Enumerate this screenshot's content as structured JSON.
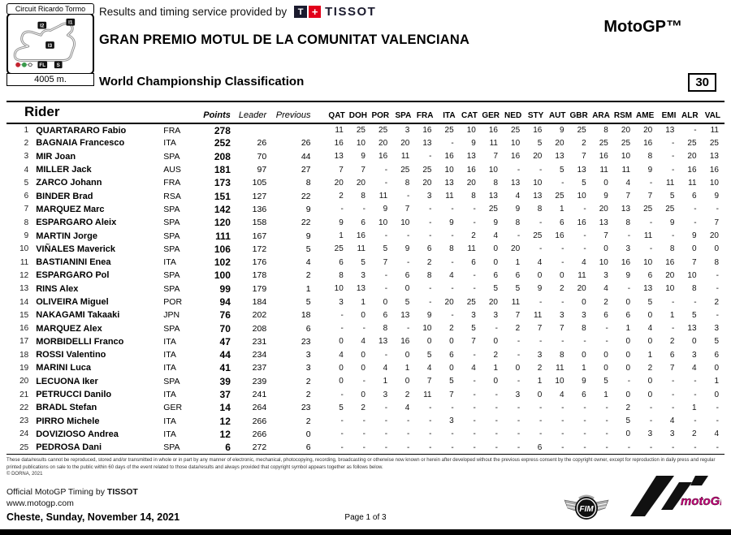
{
  "header": {
    "circuit_name": "Circuit Ricardo Tormo",
    "circuit_length": "4005 m.",
    "sector_labels": {
      "i2": "I2",
      "i1": "I1",
      "i3": "I3",
      "fl": "FL",
      "s": "S"
    },
    "service_text": "Results and timing service provided by",
    "tissot_t": "T",
    "tissot_plus": "+",
    "tissot_wordmark": "TISSOT",
    "event_title": "GRAN PREMIO MOTUL DE LA COMUNITAT VALENCIANA",
    "report_title": "World Championship Classification",
    "category": "MotoGP™",
    "doc_number": "30",
    "colors": {
      "tissot_red": "#e2001a",
      "tissot_navy": "#1b1b2e",
      "motogp_magenta": "#c9007a"
    }
  },
  "table": {
    "rider_col": "Rider",
    "points_col": "Points",
    "leader_col": "Leader",
    "previous_col": "Previous",
    "races": [
      "QAT",
      "DOH",
      "POR",
      "SPA",
      "FRA",
      "ITA",
      "CAT",
      "GER",
      "NED",
      "STY",
      "AUT",
      "GBR",
      "ARA",
      "RSM",
      "AME",
      "EMI",
      "ALR",
      "VAL"
    ],
    "rows": [
      {
        "pos": "1",
        "rider": "QUARTARARO Fabio",
        "nation": "FRA",
        "points": "278",
        "leader": "",
        "previous": "",
        "scores": [
          "11",
          "25",
          "25",
          "3",
          "16",
          "25",
          "10",
          "16",
          "25",
          "16",
          "9",
          "25",
          "8",
          "20",
          "20",
          "13",
          "-",
          "11"
        ]
      },
      {
        "pos": "2",
        "rider": "BAGNAIA Francesco",
        "nation": "ITA",
        "points": "252",
        "leader": "26",
        "previous": "26",
        "scores": [
          "16",
          "10",
          "20",
          "20",
          "13",
          "-",
          "9",
          "11",
          "10",
          "5",
          "20",
          "2",
          "25",
          "25",
          "16",
          "-",
          "25",
          "25"
        ]
      },
      {
        "pos": "3",
        "rider": "MIR Joan",
        "nation": "SPA",
        "points": "208",
        "leader": "70",
        "previous": "44",
        "scores": [
          "13",
          "9",
          "16",
          "11",
          "-",
          "16",
          "13",
          "7",
          "16",
          "20",
          "13",
          "7",
          "16",
          "10",
          "8",
          "-",
          "20",
          "13"
        ]
      },
      {
        "pos": "4",
        "rider": "MILLER Jack",
        "nation": "AUS",
        "points": "181",
        "leader": "97",
        "previous": "27",
        "scores": [
          "7",
          "7",
          "-",
          "25",
          "25",
          "10",
          "16",
          "10",
          "-",
          "-",
          "5",
          "13",
          "11",
          "11",
          "9",
          "-",
          "16",
          "16"
        ]
      },
      {
        "pos": "5",
        "rider": "ZARCO Johann",
        "nation": "FRA",
        "points": "173",
        "leader": "105",
        "previous": "8",
        "scores": [
          "20",
          "20",
          "-",
          "8",
          "20",
          "13",
          "20",
          "8",
          "13",
          "10",
          "-",
          "5",
          "0",
          "4",
          "-",
          "11",
          "11",
          "10"
        ]
      },
      {
        "pos": "6",
        "rider": "BINDER Brad",
        "nation": "RSA",
        "points": "151",
        "leader": "127",
        "previous": "22",
        "scores": [
          "2",
          "8",
          "11",
          "-",
          "3",
          "11",
          "8",
          "13",
          "4",
          "13",
          "25",
          "10",
          "9",
          "7",
          "7",
          "5",
          "6",
          "9"
        ]
      },
      {
        "pos": "7",
        "rider": "MARQUEZ Marc",
        "nation": "SPA",
        "points": "142",
        "leader": "136",
        "previous": "9",
        "scores": [
          "-",
          "-",
          "9",
          "7",
          "-",
          "-",
          "-",
          "25",
          "9",
          "8",
          "1",
          "-",
          "20",
          "13",
          "25",
          "25",
          "-",
          "-"
        ]
      },
      {
        "pos": "8",
        "rider": "ESPARGARO Aleix",
        "nation": "SPA",
        "points": "120",
        "leader": "158",
        "previous": "22",
        "scores": [
          "9",
          "6",
          "10",
          "10",
          "-",
          "9",
          "-",
          "9",
          "8",
          "-",
          "6",
          "16",
          "13",
          "8",
          "-",
          "9",
          "-",
          "7"
        ]
      },
      {
        "pos": "9",
        "rider": "MARTIN Jorge",
        "nation": "SPA",
        "points": "111",
        "leader": "167",
        "previous": "9",
        "scores": [
          "1",
          "16",
          "-",
          "-",
          "-",
          "-",
          "2",
          "4",
          "-",
          "25",
          "16",
          "-",
          "7",
          "-",
          "11",
          "-",
          "9",
          "20"
        ]
      },
      {
        "pos": "10",
        "rider": "VIÑALES Maverick",
        "nation": "SPA",
        "points": "106",
        "leader": "172",
        "previous": "5",
        "scores": [
          "25",
          "11",
          "5",
          "9",
          "6",
          "8",
          "11",
          "0",
          "20",
          "-",
          "-",
          "-",
          "0",
          "3",
          "-",
          "8",
          "0",
          "0"
        ]
      },
      {
        "pos": "11",
        "rider": "BASTIANINI Enea",
        "nation": "ITA",
        "points": "102",
        "leader": "176",
        "previous": "4",
        "scores": [
          "6",
          "5",
          "7",
          "-",
          "2",
          "-",
          "6",
          "0",
          "1",
          "4",
          "-",
          "4",
          "10",
          "16",
          "10",
          "16",
          "7",
          "8"
        ]
      },
      {
        "pos": "12",
        "rider": "ESPARGARO Pol",
        "nation": "SPA",
        "points": "100",
        "leader": "178",
        "previous": "2",
        "scores": [
          "8",
          "3",
          "-",
          "6",
          "8",
          "4",
          "-",
          "6",
          "6",
          "0",
          "0",
          "11",
          "3",
          "9",
          "6",
          "20",
          "10",
          "-"
        ]
      },
      {
        "pos": "13",
        "rider": "RINS Alex",
        "nation": "SPA",
        "points": "99",
        "leader": "179",
        "previous": "1",
        "scores": [
          "10",
          "13",
          "-",
          "0",
          "-",
          "-",
          "-",
          "5",
          "5",
          "9",
          "2",
          "20",
          "4",
          "-",
          "13",
          "10",
          "8",
          "-"
        ]
      },
      {
        "pos": "14",
        "rider": "OLIVEIRA Miguel",
        "nation": "POR",
        "points": "94",
        "leader": "184",
        "previous": "5",
        "scores": [
          "3",
          "1",
          "0",
          "5",
          "-",
          "20",
          "25",
          "20",
          "11",
          "-",
          "-",
          "0",
          "2",
          "0",
          "5",
          "-",
          "-",
          "2"
        ]
      },
      {
        "pos": "15",
        "rider": "NAKAGAMI Takaaki",
        "nation": "JPN",
        "points": "76",
        "leader": "202",
        "previous": "18",
        "scores": [
          "-",
          "0",
          "6",
          "13",
          "9",
          "-",
          "3",
          "3",
          "7",
          "11",
          "3",
          "3",
          "6",
          "6",
          "0",
          "1",
          "5",
          "-"
        ]
      },
      {
        "pos": "16",
        "rider": "MARQUEZ Alex",
        "nation": "SPA",
        "points": "70",
        "leader": "208",
        "previous": "6",
        "scores": [
          "-",
          "-",
          "8",
          "-",
          "10",
          "2",
          "5",
          "-",
          "2",
          "7",
          "7",
          "8",
          "-",
          "1",
          "4",
          "-",
          "13",
          "3"
        ]
      },
      {
        "pos": "17",
        "rider": "MORBIDELLI Franco",
        "nation": "ITA",
        "points": "47",
        "leader": "231",
        "previous": "23",
        "scores": [
          "0",
          "4",
          "13",
          "16",
          "0",
          "0",
          "7",
          "0",
          "-",
          "-",
          "-",
          "-",
          "-",
          "0",
          "0",
          "2",
          "0",
          "5"
        ]
      },
      {
        "pos": "18",
        "rider": "ROSSI Valentino",
        "nation": "ITA",
        "points": "44",
        "leader": "234",
        "previous": "3",
        "scores": [
          "4",
          "0",
          "-",
          "0",
          "5",
          "6",
          "-",
          "2",
          "-",
          "3",
          "8",
          "0",
          "0",
          "0",
          "1",
          "6",
          "3",
          "6"
        ]
      },
      {
        "pos": "19",
        "rider": "MARINI Luca",
        "nation": "ITA",
        "points": "41",
        "leader": "237",
        "previous": "3",
        "scores": [
          "0",
          "0",
          "4",
          "1",
          "4",
          "0",
          "4",
          "1",
          "0",
          "2",
          "11",
          "1",
          "0",
          "0",
          "2",
          "7",
          "4",
          "0"
        ]
      },
      {
        "pos": "20",
        "rider": "LECUONA Iker",
        "nation": "SPA",
        "points": "39",
        "leader": "239",
        "previous": "2",
        "scores": [
          "0",
          "-",
          "1",
          "0",
          "7",
          "5",
          "-",
          "0",
          "-",
          "1",
          "10",
          "9",
          "5",
          "-",
          "0",
          "-",
          "-",
          "1"
        ]
      },
      {
        "pos": "21",
        "rider": "PETRUCCI Danilo",
        "nation": "ITA",
        "points": "37",
        "leader": "241",
        "previous": "2",
        "scores": [
          "-",
          "0",
          "3",
          "2",
          "11",
          "7",
          "-",
          "-",
          "3",
          "0",
          "4",
          "6",
          "1",
          "0",
          "0",
          "-",
          "-",
          "0"
        ]
      },
      {
        "pos": "22",
        "rider": "BRADL Stefan",
        "nation": "GER",
        "points": "14",
        "leader": "264",
        "previous": "23",
        "scores": [
          "5",
          "2",
          "-",
          "4",
          "-",
          "-",
          "-",
          "-",
          "-",
          "-",
          "-",
          "-",
          "-",
          "2",
          "-",
          "-",
          "1",
          "-"
        ]
      },
      {
        "pos": "23",
        "rider": "PIRRO Michele",
        "nation": "ITA",
        "points": "12",
        "leader": "266",
        "previous": "2",
        "scores": [
          "-",
          "-",
          "-",
          "-",
          "-",
          "3",
          "-",
          "-",
          "-",
          "-",
          "-",
          "-",
          "-",
          "5",
          "-",
          "4",
          "-",
          "-"
        ]
      },
      {
        "pos": "24",
        "rider": "DOVIZIOSO Andrea",
        "nation": "ITA",
        "points": "12",
        "leader": "266",
        "previous": "0",
        "scores": [
          "-",
          "-",
          "-",
          "-",
          "-",
          "-",
          "-",
          "-",
          "-",
          "-",
          "-",
          "-",
          "-",
          "0",
          "3",
          "3",
          "2",
          "4"
        ]
      },
      {
        "pos": "25",
        "rider": "PEDROSA Dani",
        "nation": "SPA",
        "points": "6",
        "leader": "272",
        "previous": "6",
        "scores": [
          "-",
          "-",
          "-",
          "-",
          "-",
          "-",
          "-",
          "-",
          "-",
          "6",
          "-",
          "-",
          "-",
          "-",
          "-",
          "-",
          "-",
          "-"
        ]
      }
    ]
  },
  "footer": {
    "disclaimer": "These data/results cannot be reproduced, stored and/or transmitted in whole or in part by any manner of electronic, mechanical, photocopying, recording, broadcasting or otherwise now known or herein after developed without the previous express consent by the copyright owner, except for reproduction in daily press and regular printed publications on sale to the public within 60 days of the event related to those data/results and always provided that copyright symbol appears together as follows below.",
    "copyright": "© DORNA, 2021",
    "timing_credit_prefix": "Official MotoGP Timing by",
    "timing_credit_brand": "TISSOT",
    "website": "www.motogp.com",
    "location_date": "Cheste, Sunday, November 14, 2021",
    "page_indicator": "Page 1 of 3",
    "fim_label": "FIM",
    "motogp_wordmark": "motoGP™"
  }
}
